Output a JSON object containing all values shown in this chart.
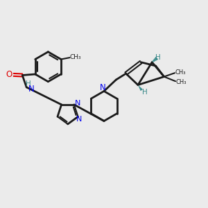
{
  "bg_color": "#ebebeb",
  "bond_color": "#1a1a1a",
  "nitrogen_color": "#0000ee",
  "oxygen_color": "#dd0000",
  "stereo_color": "#3a8a8a",
  "figsize": [
    3.0,
    3.0
  ],
  "dpi": 100,
  "xlim": [
    0,
    10
  ],
  "ylim": [
    0,
    10
  ]
}
